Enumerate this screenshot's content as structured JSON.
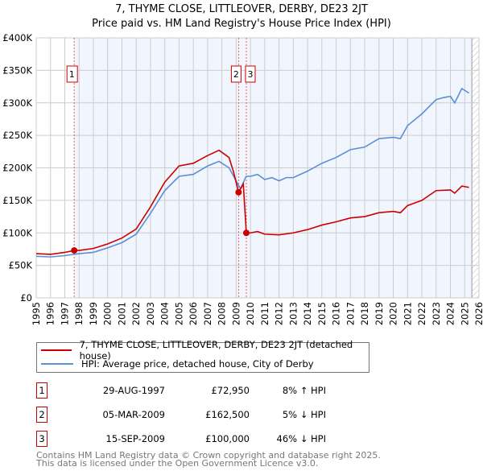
{
  "chart_data": {
    "type": "line",
    "title": "7, THYME CLOSE, LITTLEOVER, DERBY, DE23 2JT",
    "subtitle": "Price paid vs. HM Land Registry's House Price Index (HPI)",
    "xlim": [
      1995,
      2026
    ],
    "ylim": [
      0,
      400000
    ],
    "x_ticks": [
      "1995",
      "1996",
      "1997",
      "1998",
      "1999",
      "2000",
      "2001",
      "2002",
      "2003",
      "2004",
      "2005",
      "2006",
      "2007",
      "2008",
      "2009",
      "2010",
      "2011",
      "2012",
      "2013",
      "2014",
      "2015",
      "2016",
      "2017",
      "2018",
      "2019",
      "2020",
      "2021",
      "2022",
      "2023",
      "2024",
      "2025",
      "2026"
    ],
    "y_ticks": [
      {
        "v": 0,
        "label": "£0"
      },
      {
        "v": 50000,
        "label": "£50K"
      },
      {
        "v": 100000,
        "label": "£100K"
      },
      {
        "v": 150000,
        "label": "£150K"
      },
      {
        "v": 200000,
        "label": "£200K"
      },
      {
        "v": 250000,
        "label": "£250K"
      },
      {
        "v": 300000,
        "label": "£300K"
      },
      {
        "v": 350000,
        "label": "£350K"
      },
      {
        "v": 400000,
        "label": "£400K"
      }
    ],
    "series": [
      {
        "name": "7, THYME CLOSE, LITTLEOVER, DERBY, DE23 2JT (detached house)",
        "color": "#cc0000",
        "points": [
          [
            1995,
            68000
          ],
          [
            1996,
            67000
          ],
          [
            1997,
            70000
          ],
          [
            1997.66,
            72950
          ],
          [
            1998,
            73000
          ],
          [
            1999,
            76000
          ],
          [
            2000,
            83000
          ],
          [
            2001,
            92000
          ],
          [
            2002,
            106000
          ],
          [
            2003,
            140000
          ],
          [
            2004,
            178000
          ],
          [
            2005,
            203000
          ],
          [
            2006,
            207000
          ],
          [
            2007,
            219000
          ],
          [
            2007.8,
            227000
          ],
          [
            2008.5,
            216000
          ],
          [
            2008.8,
            195000
          ],
          [
            2009.17,
            162500
          ],
          [
            2009.5,
            175000
          ],
          [
            2009.71,
            100000
          ],
          [
            2010,
            100000
          ],
          [
            2010.5,
            102000
          ],
          [
            2011,
            98000
          ],
          [
            2012,
            97000
          ],
          [
            2013,
            100000
          ],
          [
            2014,
            105000
          ],
          [
            2015,
            112000
          ],
          [
            2016,
            117000
          ],
          [
            2017,
            123000
          ],
          [
            2018,
            125000
          ],
          [
            2019,
            131000
          ],
          [
            2020,
            133000
          ],
          [
            2020.5,
            131000
          ],
          [
            2021,
            142000
          ],
          [
            2022,
            150000
          ],
          [
            2023,
            165000
          ],
          [
            2024,
            166000
          ],
          [
            2024.3,
            161000
          ],
          [
            2024.8,
            172000
          ],
          [
            2025.3,
            170000
          ]
        ]
      },
      {
        "name": "HPI: Average price, detached house, City of Derby",
        "color": "#5b8fd6",
        "points": [
          [
            1995,
            64000
          ],
          [
            1996,
            63000
          ],
          [
            1997,
            65000
          ],
          [
            1998,
            68000
          ],
          [
            1999,
            70000
          ],
          [
            2000,
            77000
          ],
          [
            2001,
            85000
          ],
          [
            2002,
            98000
          ],
          [
            2003,
            130000
          ],
          [
            2004,
            165000
          ],
          [
            2005,
            187000
          ],
          [
            2006,
            190000
          ],
          [
            2007,
            203000
          ],
          [
            2007.8,
            210000
          ],
          [
            2008.5,
            200000
          ],
          [
            2009,
            180000
          ],
          [
            2009.3,
            168000
          ],
          [
            2009.7,
            187000
          ],
          [
            2010,
            187000
          ],
          [
            2010.5,
            190000
          ],
          [
            2011,
            182000
          ],
          [
            2011.5,
            185000
          ],
          [
            2012,
            180000
          ],
          [
            2012.5,
            185000
          ],
          [
            2013,
            185000
          ],
          [
            2014,
            195000
          ],
          [
            2015,
            207000
          ],
          [
            2016,
            216000
          ],
          [
            2017,
            228000
          ],
          [
            2018,
            232000
          ],
          [
            2019,
            245000
          ],
          [
            2020,
            247000
          ],
          [
            2020.5,
            245000
          ],
          [
            2021,
            265000
          ],
          [
            2022,
            283000
          ],
          [
            2023,
            305000
          ],
          [
            2023.5,
            308000
          ],
          [
            2024,
            310000
          ],
          [
            2024.3,
            300000
          ],
          [
            2024.8,
            322000
          ],
          [
            2025.3,
            315000
          ]
        ]
      }
    ],
    "sales": [
      {
        "label": "1",
        "x": 1997.66,
        "y": 72950
      },
      {
        "label": "2",
        "x": 2009.17,
        "y": 162500
      },
      {
        "label": "3",
        "x": 2009.71,
        "y": 100000
      }
    ],
    "shaded_from": 1997.66,
    "hatched_from": 2025.5,
    "grid": true
  },
  "legend": {
    "property": "7, THYME CLOSE, LITTLEOVER, DERBY, DE23 2JT (detached house)",
    "hpi": "HPI: Average price, detached house, City of Derby"
  },
  "transactions": [
    {
      "num": "1",
      "date": "29-AUG-1997",
      "price": "£72,950",
      "delta": "8% ↑ HPI"
    },
    {
      "num": "2",
      "date": "05-MAR-2009",
      "price": "£162,500",
      "delta": "5% ↓ HPI"
    },
    {
      "num": "3",
      "date": "15-SEP-2009",
      "price": "£100,000",
      "delta": "46% ↓ HPI"
    }
  ],
  "footer": {
    "line1": "Contains HM Land Registry data © Crown copyright and database right 2025.",
    "line2": "This data is licensed under the Open Government Licence v3.0."
  }
}
